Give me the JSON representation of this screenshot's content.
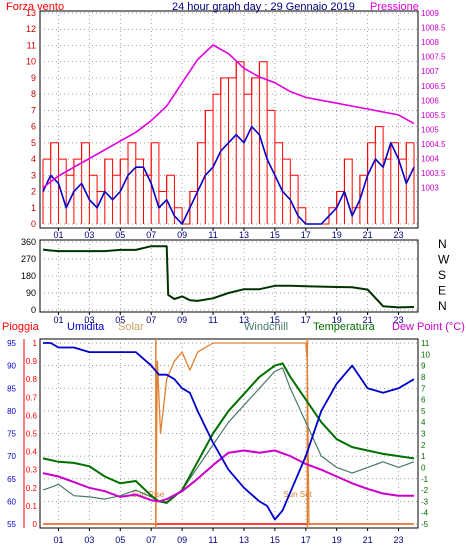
{
  "colors": {
    "wind": "#ff0000",
    "pressure": "#e000e0",
    "direction": "#003300",
    "humidity": "#0000cc",
    "solar": "#e08030",
    "windchill": "#4a7a6a",
    "temperature": "#007000",
    "dewpoint": "#cc00cc",
    "rain": "#ff0000",
    "title": "#000080",
    "grid": "#808080"
  },
  "chart_data": [
    {
      "type": "line",
      "title": "24 hour graph day : 29 Gennaio 2019",
      "y_label_left": "Forza vento",
      "y_label_right": "Pressione",
      "x_ticks": [
        "01",
        "03",
        "05",
        "07",
        "09",
        "11",
        "13",
        "15",
        "17",
        "19",
        "21",
        "23"
      ],
      "ylim_left": [
        0,
        13
      ],
      "ylim_right": [
        1001.75,
        1009
      ],
      "yticks_left": [
        "0",
        "1",
        "2",
        "3",
        "4",
        "5",
        "6",
        "7",
        "8",
        "9",
        "10",
        "11",
        "12",
        "13"
      ],
      "yticks_right": [
        "1003",
        "1003.5",
        "1004",
        "1004.5",
        "1005",
        "1005.5",
        "1006",
        "1006.5",
        "1007",
        "1007.5",
        "1008",
        "1008.5",
        "1009"
      ],
      "grid": true,
      "series": [
        {
          "key": "wind",
          "axis": "left",
          "x": [
            0,
            0.5,
            1,
            1.5,
            2,
            2.5,
            3,
            3.5,
            4,
            4.5,
            5,
            5.5,
            6,
            6.5,
            7,
            7.5,
            8,
            8.5,
            9,
            9.5,
            10,
            10.5,
            11,
            11.5,
            12,
            12.5,
            13,
            13.5,
            14,
            14.5,
            15,
            15.5,
            16,
            16.5,
            17,
            17.5,
            18,
            18.5,
            19,
            19.5,
            20,
            20.5,
            21,
            21.5,
            22,
            22.5,
            23,
            23.5,
            24
          ],
          "values": [
            4,
            5,
            4,
            3,
            4,
            5,
            3,
            2,
            4,
            3,
            4,
            5,
            4,
            3,
            5,
            2,
            3,
            1,
            0,
            2,
            5,
            7,
            8,
            9,
            9,
            10,
            8,
            9,
            10,
            7,
            5,
            4,
            3,
            1,
            0,
            0,
            0,
            1,
            2,
            4,
            1,
            3,
            5,
            6,
            4,
            5,
            4,
            5,
            5
          ]
        },
        {
          "key": "humidity_wind",
          "axis": "left",
          "x": [
            0,
            0.5,
            1,
            1.5,
            2,
            2.5,
            3,
            3.5,
            4,
            4.5,
            5,
            5.5,
            6,
            6.5,
            7,
            7.5,
            8,
            8.5,
            9,
            9.5,
            10,
            10.5,
            11,
            11.5,
            12,
            12.5,
            13,
            13.5,
            14,
            14.5,
            15,
            15.5,
            16,
            16.5,
            17,
            17.5,
            18,
            18.5,
            19,
            19.5,
            20,
            20.5,
            21,
            21.5,
            22,
            22.5,
            23,
            23.5,
            24
          ],
          "values": [
            2,
            3,
            2.5,
            1,
            2,
            2.5,
            1.5,
            1,
            2,
            1.5,
            2,
            3,
            3.5,
            3.5,
            2.5,
            1,
            1.5,
            0.5,
            0,
            1,
            2,
            3,
            3.5,
            4.5,
            5,
            5.5,
            5,
            6,
            5.5,
            4,
            3,
            2,
            1.5,
            0.5,
            0,
            0,
            0,
            0.5,
            1,
            2,
            0.5,
            1.5,
            3,
            4,
            3.5,
            5,
            4,
            2.5,
            3.5
          ]
        },
        {
          "key": "pressure",
          "axis": "right",
          "x": [
            0,
            1,
            2,
            3,
            4,
            5,
            6,
            7,
            8,
            9,
            10,
            11,
            12,
            13,
            14,
            15,
            16,
            17,
            18,
            19,
            20,
            21,
            22,
            23,
            24
          ],
          "values": [
            1003,
            1003.4,
            1003.7,
            1004,
            1004.3,
            1004.6,
            1004.9,
            1005.3,
            1005.8,
            1006.6,
            1007.4,
            1007.9,
            1007.6,
            1007.1,
            1006.8,
            1006.6,
            1006.3,
            1006.1,
            1006,
            1005.9,
            1005.8,
            1005.7,
            1005.6,
            1005.5,
            1005.2
          ]
        }
      ]
    },
    {
      "type": "line",
      "title": "",
      "y_label_right": "N W S E N",
      "x_ticks": [
        "01",
        "03",
        "05",
        "07",
        "09",
        "11",
        "13",
        "15",
        "17",
        "19",
        "21",
        "23"
      ],
      "ylim": [
        0,
        360
      ],
      "yticks": [
        "0",
        "90",
        "180",
        "270",
        "360"
      ],
      "grid": true,
      "series": [
        {
          "key": "direction",
          "x": [
            0,
            0.5,
            1,
            2,
            3,
            4,
            5,
            6,
            7,
            7.5,
            8,
            8.1,
            8.5,
            9,
            9.5,
            10,
            11,
            12,
            13,
            14,
            15,
            16,
            17,
            18,
            19,
            20,
            21,
            22,
            23,
            24
          ],
          "values": [
            320,
            315,
            312,
            312,
            312,
            312,
            318,
            318,
            338,
            338,
            338,
            80,
            58,
            72,
            52,
            48,
            62,
            90,
            110,
            110,
            128,
            128,
            126,
            124,
            122,
            120,
            108,
            20,
            14,
            16
          ]
        }
      ]
    },
    {
      "type": "line",
      "title": "",
      "legend": [
        "Pioggia",
        "Umidita",
        "Solar",
        "Windchill",
        "Temperatura",
        "Dew Point (°C)"
      ],
      "x_ticks": [
        "01",
        "03",
        "05",
        "07",
        "09",
        "11",
        "13",
        "15",
        "17",
        "19",
        "21",
        "23"
      ],
      "ylim_left": [
        55,
        95
      ],
      "ylim_right": [
        -5,
        11
      ],
      "yticks_left": [
        "55",
        "60",
        "65",
        "70",
        "75",
        "80",
        "85",
        "90",
        "95"
      ],
      "yticks_right": [
        "-5",
        "-4",
        "-3",
        "-2",
        "-1",
        "0",
        "1",
        "2",
        "3",
        "4",
        "5",
        "6",
        "7",
        "8",
        "9",
        "10",
        "11"
      ],
      "rain_ticks": [
        "0",
        "0.1",
        "0.2",
        "0.3",
        "0.4",
        "0.5",
        "0.6",
        "0.7",
        "0.8",
        "0.9",
        "1"
      ],
      "annotations": [
        {
          "text": "Sun Rise",
          "x": 7.3
        },
        {
          "text": "Sun Set",
          "x": 17.1
        }
      ],
      "grid": true,
      "series": [
        {
          "key": "rain",
          "axis": "rain",
          "x": [
            0,
            24
          ],
          "values": [
            0,
            0
          ]
        },
        {
          "key": "humidity",
          "axis": "left",
          "x": [
            0,
            0.5,
            1,
            2,
            3,
            4,
            5,
            6,
            7,
            7.5,
            8,
            8.5,
            9,
            9.5,
            10,
            11,
            12,
            13,
            14,
            14.5,
            15,
            15.5,
            16,
            17,
            18,
            19,
            20,
            21,
            22,
            23,
            24
          ],
          "values": [
            95,
            95,
            94,
            94,
            93,
            93,
            93,
            93,
            90,
            88,
            88,
            87,
            85,
            84,
            80,
            73,
            67,
            63,
            60,
            59,
            56,
            58,
            62,
            70,
            80,
            86,
            90,
            85,
            84,
            85,
            87
          ]
        },
        {
          "key": "solar",
          "axis": "rain",
          "x": [
            0,
            7.3,
            7.4,
            7.6,
            8,
            8.5,
            9,
            9.5,
            10,
            11,
            12,
            13,
            14,
            15,
            16,
            17,
            17.1,
            17.2,
            24
          ],
          "values": [
            0,
            0,
            0.9,
            0.5,
            0.8,
            0.9,
            0.95,
            0.85,
            0.95,
            1,
            1,
            1,
            1,
            1,
            1,
            1,
            0.9,
            0,
            0
          ]
        },
        {
          "key": "windchill",
          "axis": "right",
          "x": [
            0,
            1,
            2,
            3,
            4,
            5,
            6,
            7,
            7.5,
            8,
            9,
            10,
            11,
            12,
            13,
            14,
            15,
            15.5,
            16,
            17,
            18,
            19,
            20,
            21,
            22,
            23,
            24
          ],
          "values": [
            -2,
            -1.5,
            -2.5,
            -2.6,
            -2.8,
            -2.5,
            -2,
            -2.6,
            -3,
            -3.2,
            -2,
            0,
            2,
            4,
            5.5,
            7,
            8.5,
            8.8,
            7,
            4,
            1,
            0,
            -0.5,
            0,
            0.5,
            0,
            0.5
          ]
        },
        {
          "key": "temperature",
          "axis": "right",
          "x": [
            0,
            1,
            2,
            3,
            4,
            5,
            6,
            7,
            7.5,
            8,
            9,
            10,
            11,
            12,
            13,
            14,
            15,
            15.5,
            16,
            17,
            18,
            19,
            20,
            21,
            22,
            23,
            24
          ],
          "values": [
            0.8,
            0.5,
            0.4,
            0.1,
            -0.8,
            -1.4,
            -1.2,
            -2.5,
            -3.0,
            -3.1,
            -2.0,
            0.5,
            3,
            5,
            6.5,
            8,
            9,
            9.2,
            8,
            6,
            4,
            2.5,
            1.8,
            1.5,
            1.2,
            1,
            0.8
          ]
        },
        {
          "key": "dewpoint",
          "axis": "right",
          "x": [
            0,
            1,
            2,
            3,
            4,
            5,
            6,
            7,
            7.5,
            8,
            9,
            10,
            11,
            12,
            13,
            14,
            15,
            16,
            17,
            18,
            19,
            20,
            21,
            22,
            23,
            24
          ],
          "values": [
            -0.5,
            -0.8,
            -1.3,
            -1.8,
            -2.1,
            -2.6,
            -2.4,
            -2.9,
            -3.0,
            -2.8,
            -2.1,
            -1.0,
            0.2,
            1.3,
            1.5,
            1.3,
            1.5,
            1.0,
            0.3,
            -0.2,
            -0.8,
            -1.4,
            -1.9,
            -2.3,
            -2.5,
            -2.5
          ]
        }
      ]
    }
  ]
}
